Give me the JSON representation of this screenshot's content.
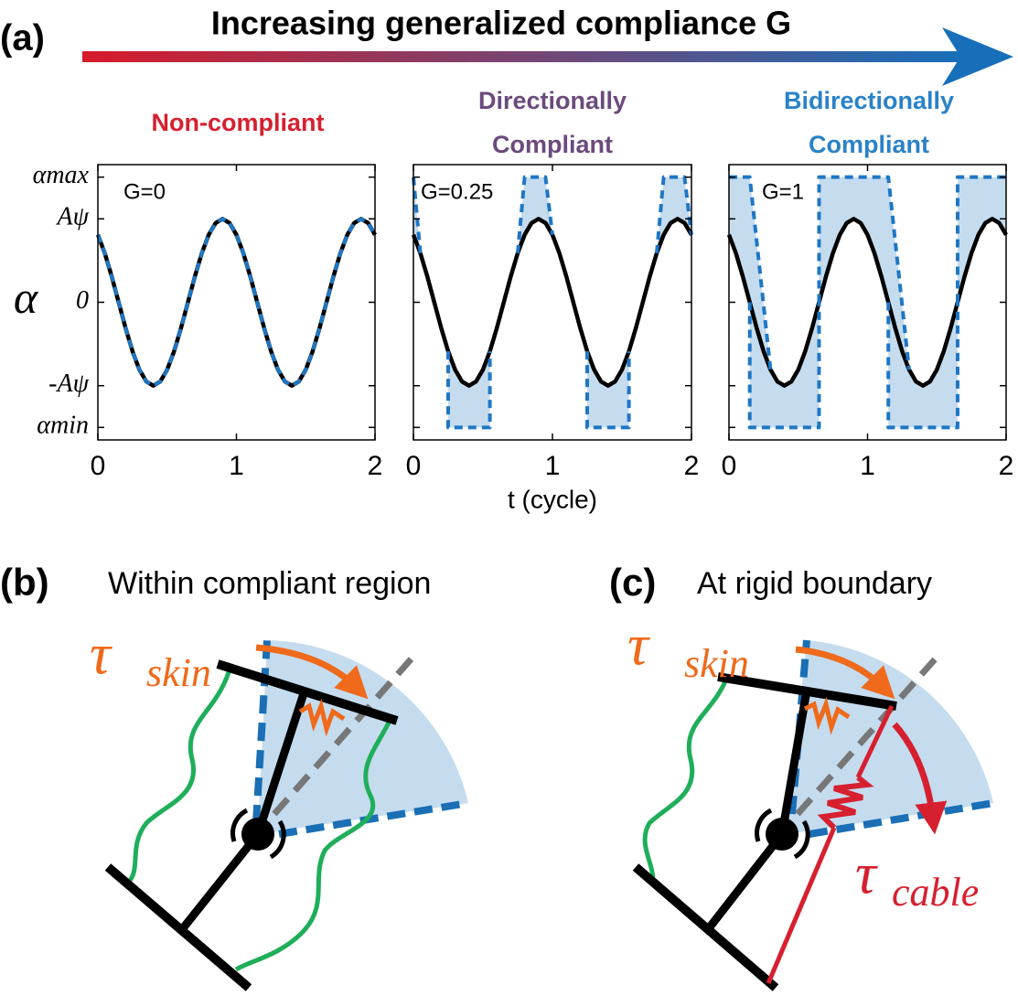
{
  "panel_labels": [
    "(a)",
    "(b)",
    "(c)"
  ],
  "header": "Increasing generalized compliance G",
  "subfigure_titles": [
    "Within compliant region",
    "At rigid boundary"
  ],
  "tau_skin": {
    "symbol": "τ",
    "sub": "skin"
  },
  "tau_cable": {
    "symbol": "τ",
    "sub": "cable"
  },
  "chart_data": [
    {
      "type": "line",
      "title": "Non-compliant",
      "title_color": "#d6202f",
      "annotation": "G=0",
      "ylabel": "α",
      "xlim": [
        0,
        2
      ],
      "xticks": [
        0,
        1,
        2
      ],
      "ylim": [
        -1.65,
        1.65
      ],
      "yticks": [
        {
          "value": -1.5,
          "label": "αmin"
        },
        {
          "value": -1,
          "label": "-Aψ"
        },
        0,
        {
          "value": 1,
          "label": "Aψ"
        },
        {
          "value": 1.5,
          "label": "αmax"
        }
      ],
      "x": [
        0,
        0.05,
        0.1,
        0.15,
        0.2,
        0.25,
        0.3,
        0.35,
        0.4,
        0.45,
        0.5,
        0.55,
        0.6,
        0.65,
        0.7,
        0.75,
        0.8,
        0.85,
        0.9,
        0.95,
        1,
        1.05,
        1.1,
        1.15,
        1.2,
        1.25,
        1.3,
        1.35,
        1.4,
        1.45,
        1.5,
        1.55,
        1.6,
        1.65,
        1.7,
        1.75,
        1.8,
        1.85,
        1.9,
        1.95,
        2
      ],
      "series": [
        {
          "color": "#000000",
          "style": "solid",
          "values": [
            0.809,
            0.588,
            0.309,
            0,
            -0.309,
            -0.588,
            -0.809,
            -0.951,
            -1,
            -0.951,
            -0.809,
            -0.588,
            -0.309,
            0,
            0.309,
            0.588,
            0.809,
            0.951,
            1,
            0.951,
            0.809,
            0.588,
            0.309,
            0,
            -0.309,
            -0.588,
            -0.809,
            -0.951,
            -1,
            -0.951,
            -0.809,
            -0.588,
            -0.309,
            0,
            0.309,
            0.588,
            0.809,
            0.951,
            1,
            0.951,
            0.809
          ]
        },
        {
          "color": "#1f77c4",
          "style": "dashed",
          "values": [
            0.809,
            0.588,
            0.309,
            0,
            -0.309,
            -0.588,
            -0.809,
            -0.951,
            -1,
            -0.951,
            -0.809,
            -0.588,
            -0.309,
            0,
            0.309,
            0.588,
            0.809,
            0.951,
            1,
            0.951,
            0.809,
            0.588,
            0.309,
            0,
            -0.309,
            -0.588,
            -0.809,
            -0.951,
            -1,
            -0.951,
            -0.809,
            -0.588,
            -0.309,
            0,
            0.309,
            0.588,
            0.809,
            0.951,
            1,
            0.951,
            0.809
          ]
        }
      ]
    },
    {
      "type": "line",
      "title": "Directionally Compliant",
      "title_color": "#6b4a7d",
      "annotation": "G=0.25",
      "xlabel": "t (cycle)",
      "xlim": [
        0,
        2
      ],
      "xticks": [
        0,
        1,
        2
      ],
      "ylim": [
        -1.65,
        1.65
      ],
      "yticks": [
        -1.5,
        -1,
        0,
        1,
        1.5
      ],
      "x": [
        0,
        0.05,
        0.1,
        0.15,
        0.2,
        0.25,
        0.3,
        0.35,
        0.4,
        0.45,
        0.5,
        0.55,
        0.6,
        0.65,
        0.7,
        0.75,
        0.8,
        0.85,
        0.9,
        0.95,
        1,
        1.05,
        1.1,
        1.15,
        1.2,
        1.25,
        1.3,
        1.35,
        1.4,
        1.45,
        1.5,
        1.55,
        1.6,
        1.65,
        1.7,
        1.75,
        1.8,
        1.85,
        1.9,
        1.95,
        2
      ],
      "series": [
        {
          "color": "#000000",
          "style": "solid",
          "values": [
            0.809,
            0.588,
            0.309,
            0,
            -0.309,
            -0.588,
            -0.809,
            -0.951,
            -1,
            -0.951,
            -0.809,
            -0.588,
            -0.309,
            0,
            0.309,
            0.588,
            0.809,
            0.951,
            1,
            0.951,
            0.809,
            0.588,
            0.309,
            0,
            -0.309,
            -0.588,
            -0.809,
            -0.951,
            -1,
            -0.951,
            -0.809,
            -0.588,
            -0.309,
            0,
            0.309,
            0.588,
            0.809,
            0.951,
            1,
            0.951,
            0.809
          ]
        },
        {
          "color": "#1f77c4",
          "style": "dashed",
          "fill": "#c5dcef",
          "x": [
            0,
            0.05,
            null,
            0.75,
            0.8,
            0.95,
            1,
            null,
            1.75,
            1.8,
            1.95,
            2,
            null,
            0.25,
            0.25,
            0.55,
            0.55,
            null,
            1.25,
            1.25,
            1.55,
            1.55
          ],
          "values": [
            1.5,
            0.588,
            null,
            0.588,
            1.5,
            1.5,
            0.809,
            null,
            0.588,
            1.5,
            1.5,
            0.809,
            null,
            -0.588,
            -1.5,
            -1.5,
            -0.588,
            null,
            -0.588,
            -1.5,
            -1.5,
            -0.588
          ]
        }
      ]
    },
    {
      "type": "line",
      "title": "Bidirectionally Compliant",
      "title_color": "#2a82c8",
      "annotation": "G=1",
      "xlim": [
        0,
        2
      ],
      "xticks": [
        0,
        1,
        2
      ],
      "ylim": [
        -1.65,
        1.65
      ],
      "yticks": [
        -1.5,
        -1,
        0,
        1,
        1.5
      ],
      "x": [
        0,
        0.05,
        0.1,
        0.15,
        0.2,
        0.25,
        0.3,
        0.35,
        0.4,
        0.45,
        0.5,
        0.55,
        0.6,
        0.65,
        0.7,
        0.75,
        0.8,
        0.85,
        0.9,
        0.95,
        1,
        1.05,
        1.1,
        1.15,
        1.2,
        1.25,
        1.3,
        1.35,
        1.4,
        1.45,
        1.5,
        1.55,
        1.6,
        1.65,
        1.7,
        1.75,
        1.8,
        1.85,
        1.9,
        1.95,
        2
      ],
      "series": [
        {
          "color": "#000000",
          "style": "solid",
          "values": [
            0.809,
            0.588,
            0.309,
            0,
            -0.309,
            -0.588,
            -0.809,
            -0.951,
            -1,
            -0.951,
            -0.809,
            -0.588,
            -0.309,
            0,
            0.309,
            0.588,
            0.809,
            0.951,
            1,
            0.951,
            0.809,
            0.588,
            0.309,
            0,
            -0.309,
            -0.588,
            -0.809,
            -0.951,
            -1,
            -0.951,
            -0.809,
            -0.588,
            -0.309,
            0,
            0.309,
            0.588,
            0.809,
            0.951,
            1,
            0.951,
            0.809
          ]
        },
        {
          "color": "#1f77c4",
          "style": "dashed",
          "fill": "#c5dcef",
          "x": [
            0,
            0.15,
            0.3,
            null,
            0.15,
            0.15,
            0.65,
            0.65,
            null,
            0.65,
            0.65,
            1.15,
            1.3,
            null,
            1.15,
            1.15,
            1.65,
            1.65,
            null,
            1.65,
            1.65,
            2
          ],
          "values": [
            1.5,
            1.5,
            -0.809,
            null,
            0,
            -1.5,
            -1.5,
            0,
            null,
            0,
            1.5,
            1.5,
            -0.809,
            null,
            0,
            -1.5,
            -1.5,
            0,
            null,
            0,
            1.5,
            1.5
          ]
        }
      ]
    }
  ]
}
